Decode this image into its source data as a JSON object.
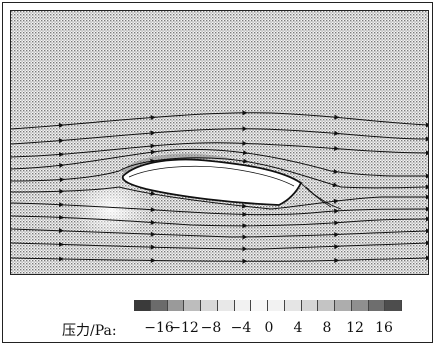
{
  "legend": {
    "label": "压力/Pa:",
    "ticks": [
      "−16",
      "−12",
      "−8",
      "−4",
      "0",
      "4",
      "8",
      "12",
      "16"
    ]
  },
  "colorbar": {
    "levels": [
      -16,
      -12,
      -8,
      -4,
      0,
      4,
      8,
      12,
      16
    ],
    "cell_colors": [
      "#3a3a3a",
      "#6b6b6b",
      "#9a9a9a",
      "#bdbdbd",
      "#d8d8d8",
      "#e8e8e8",
      "#f2f2f2",
      "#f7f7f7",
      "#f2f2f2",
      "#e5e5e5",
      "#d6d6d6",
      "#c4c4c4",
      "#adadad",
      "#8f8f8f",
      "#6e6e6e",
      "#4d4d4d"
    ]
  },
  "colors": {
    "background_field": "#c9c9c9",
    "body_fill": "#ffffff",
    "streamline": "#111111"
  }
}
